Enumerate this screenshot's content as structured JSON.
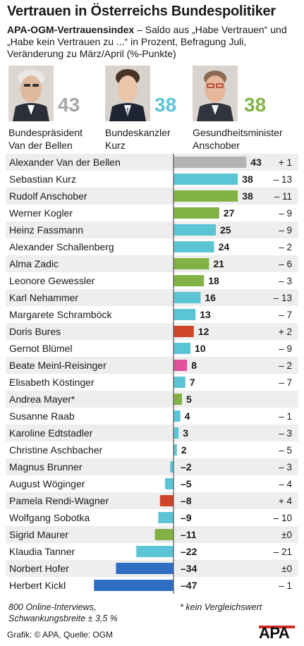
{
  "header": {
    "title": "Vertrauen in Österreichs Bundespolitiker",
    "subtitle_bold": "APA-OGM-Vertrauensindex",
    "subtitle_rest": " – Saldo aus „Habe Vertrauen“ und „Habe kein Vertrauen zu ...“ in Prozent, Befragung Juli, Veränderung zu März/April (%-Punkte)"
  },
  "featured": [
    {
      "score": "43",
      "line1": "Bundespräsident",
      "line2": "Van der Bellen",
      "color": "#a6a6a6"
    },
    {
      "score": "38",
      "line1": "Bundeskanzler",
      "line2": "Kurz",
      "color": "#5bc5d6"
    },
    {
      "score": "38",
      "line1": "Gesundheitsminister",
      "line2": "Anschober",
      "color": "#82b245"
    }
  ],
  "chart_data": {
    "type": "bar",
    "orientation": "horizontal",
    "categories": [
      "Alexander Van der Bellen",
      "Sebastian Kurz",
      "Rudolf Anschober",
      "Werner Kogler",
      "Heinz Fassmann",
      "Alexander Schallenberg",
      "Alma Zadic",
      "Leonore Gewessler",
      "Karl Nehammer",
      "Margarete Schramböck",
      "Doris Bures",
      "Gernot Blümel",
      "Beate Meinl-Reisinger",
      "Elisabeth Köstinger",
      "Andrea Mayer*",
      "Susanne Raab",
      "Karoline Edtstadler",
      "Christine Aschbacher",
      "Magnus Brunner",
      "August Wöginger",
      "Pamela Rendi-Wagner",
      "Wolfgang Sobotka",
      "Sigrid Maurer",
      "Klaudia Tanner",
      "Norbert Hofer",
      "Herbert Kickl"
    ],
    "values": [
      43,
      38,
      38,
      27,
      25,
      24,
      21,
      18,
      16,
      13,
      12,
      10,
      8,
      7,
      5,
      4,
      3,
      2,
      -2,
      -5,
      -8,
      -9,
      -11,
      -22,
      -34,
      -47
    ],
    "value_labels": [
      "43",
      "38",
      "38",
      "27",
      "25",
      "24",
      "21",
      "18",
      "16",
      "13",
      "12",
      "10",
      "8",
      "7",
      "5",
      "4",
      "3",
      "2",
      "–2",
      "–5",
      "–8",
      "–9",
      "–11",
      "–22",
      "–34",
      "–47"
    ],
    "changes": [
      "+ 1",
      "– 13",
      "– 11",
      "– 9",
      "– 9",
      "– 2",
      "– 6",
      "– 3",
      "– 13",
      "– 7",
      "+ 2",
      "– 9",
      "– 2",
      "– 7",
      "",
      "– 1",
      "– 3",
      "– 5",
      "– 3",
      "– 4",
      "+ 4",
      "– 10",
      "±0",
      "– 21",
      "±0",
      "– 1"
    ],
    "colors": [
      "#b3b3b3",
      "#5bc5d6",
      "#82b245",
      "#82b245",
      "#5bc5d6",
      "#5bc5d6",
      "#82b245",
      "#82b245",
      "#5bc5d6",
      "#5bc5d6",
      "#d0442c",
      "#5bc5d6",
      "#e1509a",
      "#5bc5d6",
      "#82b245",
      "#5bc5d6",
      "#5bc5d6",
      "#5bc5d6",
      "#5bc5d6",
      "#5bc5d6",
      "#d0442c",
      "#5bc5d6",
      "#82b245",
      "#5bc5d6",
      "#2e6fc4",
      "#2e6fc4"
    ],
    "xlim": [
      -47,
      43
    ]
  },
  "footer": {
    "note_line1": "800 Online-Interviews,",
    "note_line2": "Schwankungsbreite ± 3,5 %",
    "asterisk": "* kein Vergleichswert",
    "credit": "Grafik: © APA, Quelle: OGM",
    "logo": "APA"
  }
}
